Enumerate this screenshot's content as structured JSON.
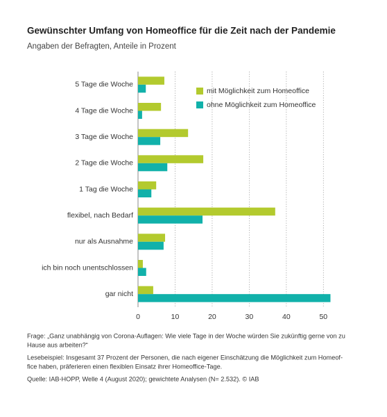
{
  "chart_data": {
    "type": "hbar",
    "title": "Gewünschter Umfang von Homeoffice für die Zeit nach der Pandemie",
    "subtitle": "Angaben der Befragten, Anteile in Prozent",
    "categories": [
      "5 Tage die Woche",
      "4 Tage die Woche",
      "3 Tage die Woche",
      "2 Tage die Woche",
      "1 Tag die Woche",
      "flexibel, nach Bedarf",
      "nur als Ausnahme",
      "ich bin noch unentschlossen",
      "gar nicht"
    ],
    "series": [
      {
        "name": "mit Möglichkeit zum Homeoffice",
        "color": "#b3ca2e",
        "values": [
          7.1,
          6.2,
          13.5,
          17.6,
          4.9,
          37,
          7.3,
          1.3,
          4.1
        ]
      },
      {
        "name": "ohne Möglichkeit zum Homeoffice",
        "color": "#11b1aa",
        "values": [
          2.1,
          1.1,
          6.0,
          7.9,
          3.6,
          17.4,
          6.9,
          2.2,
          51.9
        ]
      }
    ],
    "xlim": [
      0,
      52
    ],
    "xticks": [
      0,
      10,
      20,
      30,
      40,
      50
    ],
    "grid": true,
    "legend": "upper right",
    "notes": [
      "Frage: „Ganz unabhängig von Corona-Auflagen: Wie viele Tage in der Woche würden Sie zukünftig gerne von zu",
      "Hause aus arbeiten?“",
      "Lesebeispiel: Insgesamt 37 Prozent der Personen, die nach eigener Einschätzung die Möglichkeit zum Homeof-",
      "fice haben, präferieren einen flexiblen Einsatz ihrer Homeoffice-Tage.",
      "Quelle: IAB-HOPP, Welle 4 (August 2020); gewichtete Analysen (N= 2.532).  © IAB"
    ]
  }
}
